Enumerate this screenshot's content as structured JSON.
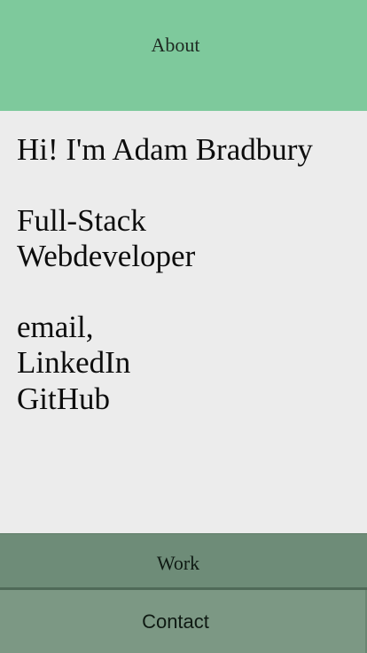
{
  "header": {
    "title": "About"
  },
  "about": {
    "greeting": "Hi! I'm Adam Bradbury",
    "role_line1": "Full-Stack",
    "role_line2": "Webdeveloper",
    "links": [
      "email,",
      "LinkedIn",
      "GitHub"
    ]
  },
  "sections": {
    "work_label": "Work",
    "contact_label": "Contact"
  }
}
